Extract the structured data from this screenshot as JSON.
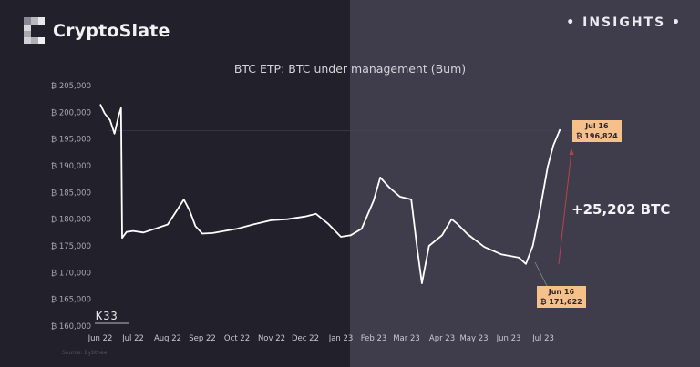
{
  "brand": {
    "name": "CryptoSlate",
    "tag": "• INSIGHTS •"
  },
  "colors": {
    "bg_left": "#22202a",
    "bg_right": "#3f3d4c",
    "line": "#ffffff",
    "callout": "#f6c08a",
    "arrow": "#c0404a"
  },
  "chart_data": {
    "type": "line",
    "title": "BTC ETP: BTC under management (Bum)",
    "xlabel": "",
    "ylabel": "",
    "ylim": [
      160000,
      205000
    ],
    "y_ticks": [
      "₿ 205,000",
      "₿ 200,000",
      "₿ 195,000",
      "₿ 190,000",
      "₿ 185,000",
      "₿ 180,000",
      "₿ 175,000",
      "₿ 170,000",
      "₿ 165,000",
      "₿ 160,000"
    ],
    "x_ticks": [
      "Jun 22",
      "Jul 22",
      "Aug 22",
      "Sep 22",
      "Oct 22",
      "Nov 22",
      "Dec 22",
      "Jan 23",
      "Feb 23",
      "Mar 23",
      "Apr 23",
      "May 23",
      "Jun 23",
      "Jul 23"
    ],
    "grid": false,
    "series": [
      {
        "name": "BTC under management",
        "x": [
          "2022-06-01",
          "2022-06-05",
          "2022-06-10",
          "2022-06-14",
          "2022-06-18",
          "2022-06-20",
          "2022-06-21",
          "2022-06-25",
          "2022-07-01",
          "2022-07-10",
          "2022-07-20",
          "2022-08-01",
          "2022-08-10",
          "2022-08-15",
          "2022-08-20",
          "2022-08-25",
          "2022-09-01",
          "2022-09-10",
          "2022-09-20",
          "2022-10-01",
          "2022-10-15",
          "2022-11-01",
          "2022-11-15",
          "2022-12-01",
          "2022-12-10",
          "2022-12-20",
          "2023-01-01",
          "2023-01-10",
          "2023-01-20",
          "2023-02-01",
          "2023-02-07",
          "2023-02-15",
          "2023-02-25",
          "2023-03-05",
          "2023-03-10",
          "2023-03-14",
          "2023-03-20",
          "2023-04-01",
          "2023-04-10",
          "2023-04-15",
          "2023-04-25",
          "2023-05-10",
          "2023-05-25",
          "2023-06-10",
          "2023-06-16",
          "2023-06-22",
          "2023-06-28",
          "2023-07-05",
          "2023-07-10",
          "2023-07-16"
        ],
        "values": [
          201500,
          199800,
          198500,
          196000,
          199500,
          200800,
          176500,
          177600,
          177800,
          177500,
          178200,
          179000,
          182000,
          183700,
          181600,
          178700,
          177300,
          177400,
          177800,
          178200,
          179000,
          179800,
          180000,
          180500,
          181000,
          179200,
          176700,
          177000,
          178200,
          183500,
          187800,
          186000,
          184200,
          183700,
          174500,
          168000,
          175000,
          177000,
          180000,
          179200,
          177200,
          174800,
          173400,
          172800,
          171622,
          175000,
          181500,
          189800,
          193800,
          196824
        ]
      }
    ],
    "annotations": [
      {
        "label_date": "Jul 16",
        "label_value": "₿ 196,824"
      },
      {
        "label_date": "Jun 16",
        "label_value": "₿ 171,622"
      },
      {
        "text": "+25,202 BTC"
      }
    ],
    "source": "Source: Bybthee"
  },
  "watermark": "K33"
}
